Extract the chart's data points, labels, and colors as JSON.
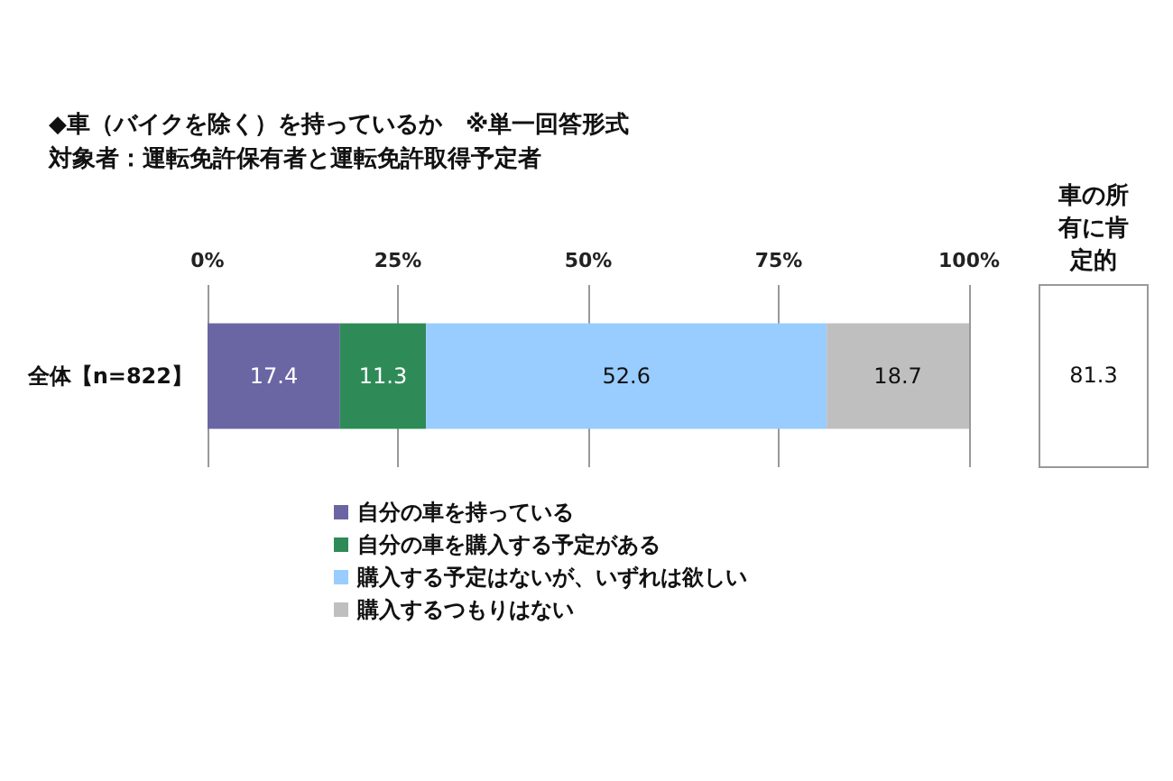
{
  "chart_data": {
    "type": "bar",
    "orientation": "horizontal",
    "stacked": true,
    "title": "◆車（バイクを除く）を持っているか　※単一回答形式",
    "subtitle": "対象者：運転免許保有者と運転免許取得予定者",
    "categories": [
      "全体【n=822】"
    ],
    "series": [
      {
        "name": "自分の車を持っている",
        "color": "#6a66a3",
        "values": [
          17.4
        ]
      },
      {
        "name": "自分の車を購入する予定がある",
        "color": "#2e8b57",
        "values": [
          11.3
        ]
      },
      {
        "name": "購入する予定はないが、いずれは欲しい",
        "color": "#99ccff",
        "values": [
          52.6
        ]
      },
      {
        "name": "購入するつもりはない",
        "color": "#bfbfbf",
        "values": [
          18.7
        ]
      }
    ],
    "xlim": [
      0,
      100
    ],
    "xticks": [
      {
        "value": 0,
        "label": "0%"
      },
      {
        "value": 25,
        "label": "25%"
      },
      {
        "value": 50,
        "label": "50%"
      },
      {
        "value": 75,
        "label": "75%"
      },
      {
        "value": 100,
        "label": "100%"
      }
    ],
    "grid": "x",
    "legend": "bottom",
    "data_labels": true,
    "annotations": [
      "車の所有に肯定的",
      "81.3"
    ]
  }
}
